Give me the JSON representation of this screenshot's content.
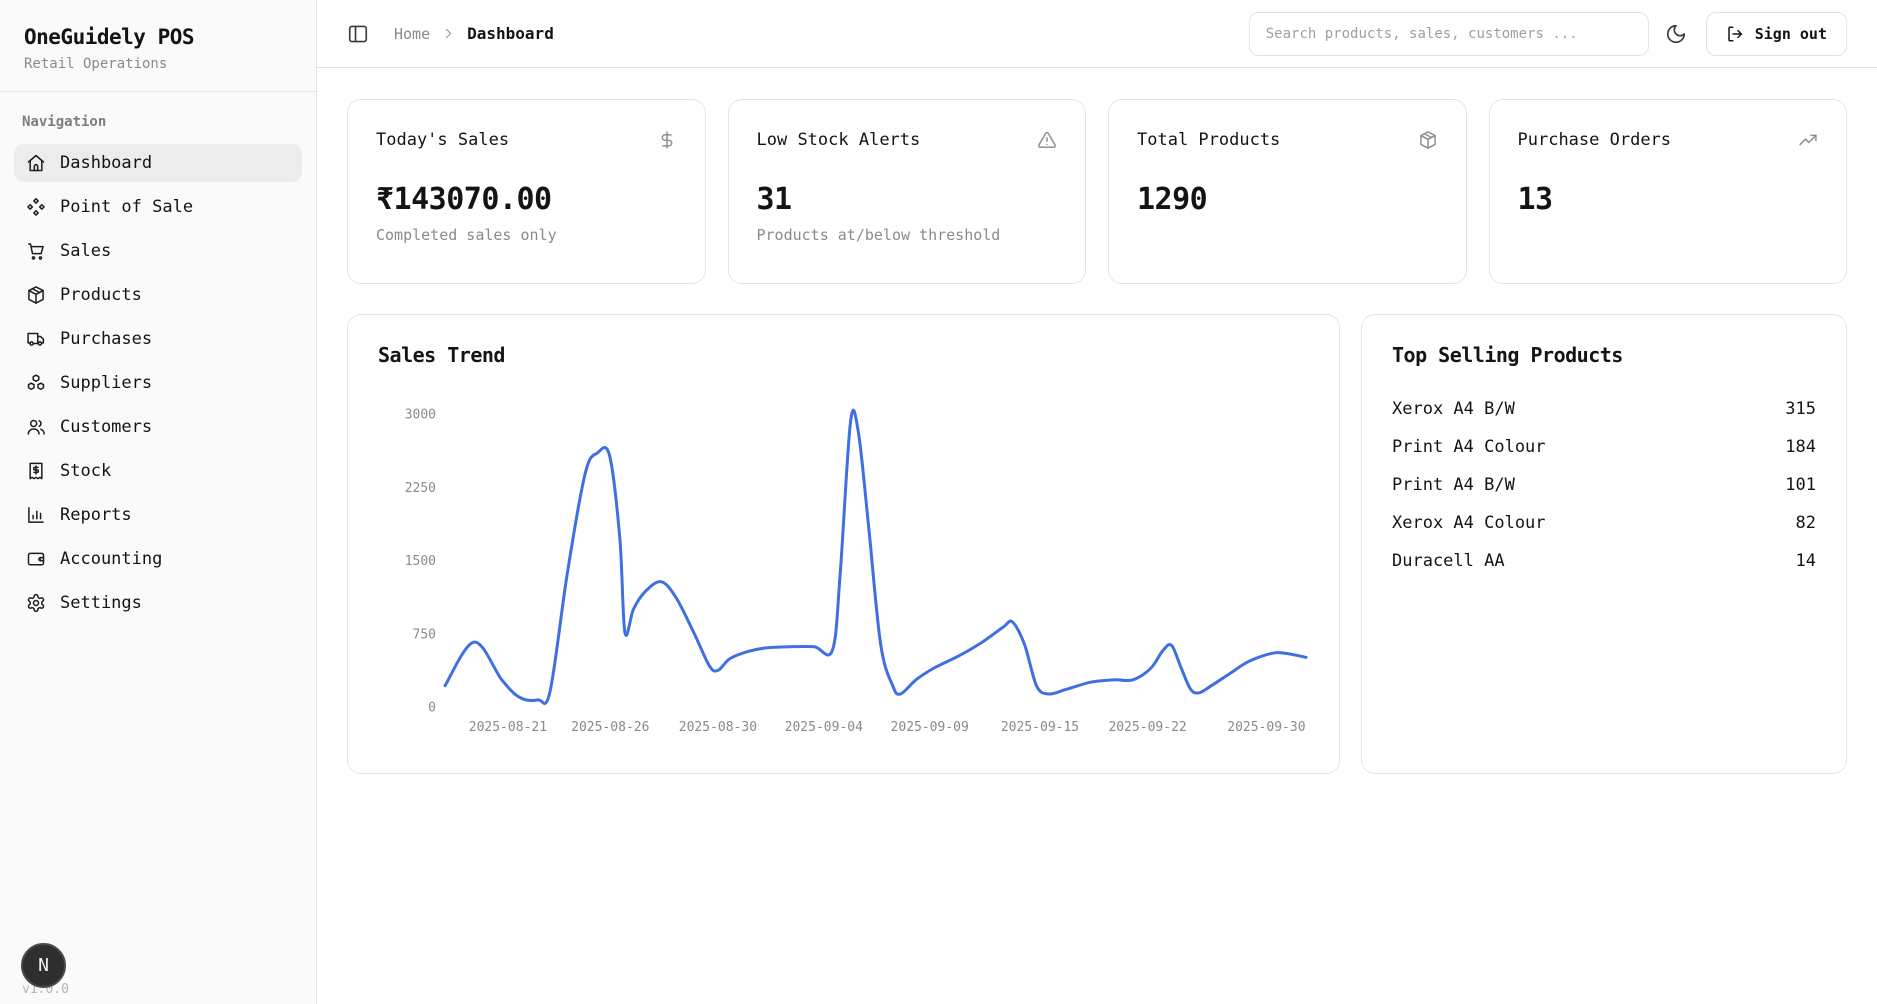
{
  "app": {
    "name": "OneGuidely POS",
    "subtitle": "Retail Operations",
    "version": "v1.0.0",
    "avatar_initial": "N"
  },
  "sidebar": {
    "section_label": "Navigation",
    "items": [
      {
        "label": "Dashboard",
        "icon": "home-icon",
        "active": true
      },
      {
        "label": "Point of Sale",
        "icon": "component-icon",
        "active": false
      },
      {
        "label": "Sales",
        "icon": "shopping-cart-icon",
        "active": false
      },
      {
        "label": "Products",
        "icon": "package-icon",
        "active": false
      },
      {
        "label": "Purchases",
        "icon": "truck-icon",
        "active": false
      },
      {
        "label": "Suppliers",
        "icon": "boxes-icon",
        "active": false
      },
      {
        "label": "Customers",
        "icon": "users-icon",
        "active": false
      },
      {
        "label": "Stock",
        "icon": "receipt-icon",
        "active": false
      },
      {
        "label": "Reports",
        "icon": "bar-chart-icon",
        "active": false
      },
      {
        "label": "Accounting",
        "icon": "wallet-icon",
        "active": false
      },
      {
        "label": "Settings",
        "icon": "gear-icon",
        "active": false
      }
    ]
  },
  "topbar": {
    "breadcrumb": {
      "root": "Home",
      "current": "Dashboard"
    },
    "search_placeholder": "Search products, sales, customers ...",
    "signout_label": "Sign out"
  },
  "stats": [
    {
      "title": "Today's Sales",
      "icon": "dollar-icon",
      "value": "₹143070.00",
      "subtitle": "Completed sales only"
    },
    {
      "title": "Low Stock Alerts",
      "icon": "alert-triangle-icon",
      "value": "31",
      "subtitle": "Products at/below threshold"
    },
    {
      "title": "Total Products",
      "icon": "package-icon",
      "value": "1290",
      "subtitle": ""
    },
    {
      "title": "Purchase Orders",
      "icon": "trending-up-icon",
      "value": "13",
      "subtitle": ""
    }
  ],
  "chart_data": {
    "type": "line",
    "title": "Sales Trend",
    "xlabel": "",
    "ylabel": "",
    "ylim": [
      0,
      3000
    ],
    "y_ticks": [
      0,
      750,
      1500,
      2250,
      3000
    ],
    "grid": false,
    "legend": false,
    "line_color": "#3f6fe0",
    "x_tick_labels": [
      "2025-08-21",
      "2025-08-26",
      "2025-08-30",
      "2025-09-04",
      "2025-09-09",
      "2025-09-15",
      "2025-09-22",
      "2025-09-30"
    ],
    "x_tick_pct": [
      7.3,
      19.2,
      31.7,
      44.0,
      56.3,
      69.1,
      81.6,
      95.4
    ],
    "points_pct": [
      0,
      3.4,
      6.6,
      8.7,
      10.8,
      12.2,
      14.2,
      16.3,
      17.7,
      19.1,
      20.3,
      20.9,
      21.9,
      23.3,
      25.1,
      26.8,
      28.9,
      30.7,
      31.7,
      33.1,
      35.2,
      37.3,
      40.1,
      42.9,
      45,
      45.9,
      47.1,
      48,
      49.2,
      50.6,
      52,
      52.9,
      54.7,
      56.8,
      59.6,
      62.4,
      64.9,
      65.9,
      67.3,
      68.7,
      70.1,
      72.2,
      75,
      77.8,
      79.9,
      82,
      83.4,
      84.4,
      85.5,
      86.6,
      87.6,
      89,
      91.1,
      93.2,
      95.3,
      96.6,
      98,
      100
    ],
    "values": [
      218,
      665,
      278,
      97,
      73,
      157,
      1367,
      2396,
      2601,
      2577,
      1730,
      762,
      1004,
      1186,
      1283,
      1125,
      762,
      423,
      375,
      496,
      569,
      605,
      617,
      617,
      581,
      1367,
      2916,
      2819,
      1851,
      641,
      218,
      133,
      278,
      399,
      520,
      665,
      823,
      871,
      641,
      218,
      133,
      182,
      254,
      278,
      278,
      399,
      581,
      629,
      399,
      182,
      145,
      218,
      339,
      460,
      532,
      557,
      545,
      508
    ]
  },
  "top_products": {
    "title": "Top Selling Products",
    "items": [
      {
        "name": "Xerox A4 B/W",
        "qty": 315
      },
      {
        "name": "Print A4 Colour",
        "qty": 184
      },
      {
        "name": "Print A4 B/W",
        "qty": 101
      },
      {
        "name": "Xerox A4 Colour",
        "qty": 82
      },
      {
        "name": "Duracell AA",
        "qty": 14
      }
    ]
  },
  "colors": {
    "accent_line": "#3f6fe0",
    "sidebar_bg": "#fafafa",
    "active_item_bg": "#ececec",
    "card_border": "#e4e4e4",
    "text": "#141414",
    "muted": "#8a8a8a",
    "avatar_bg": "#2e2e2e"
  }
}
